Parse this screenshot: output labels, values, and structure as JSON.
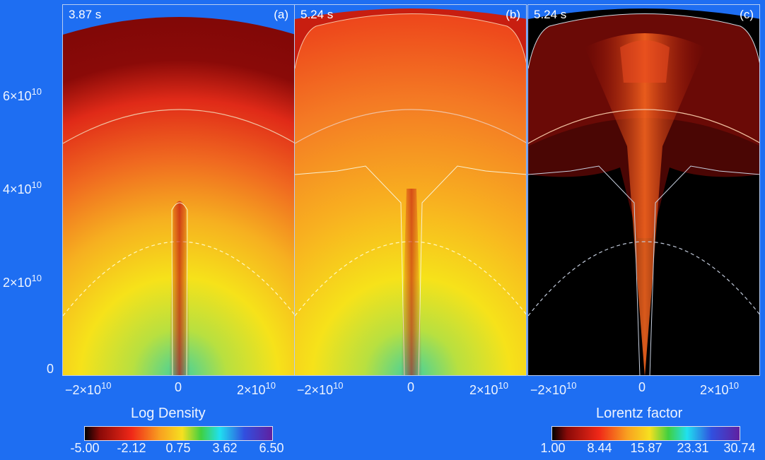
{
  "panels": [
    {
      "time": "3.87 s",
      "label": "(a)",
      "quantity": "Log Density"
    },
    {
      "time": "5.24 s",
      "label": "(b)",
      "quantity": "Log Density"
    },
    {
      "time": "5.24 s",
      "label": "(c)",
      "quantity": "Lorentz factor"
    }
  ],
  "y_axis": {
    "ticks": [
      "6×10",
      "4×10",
      "2×10",
      "0"
    ],
    "exp": "10"
  },
  "x_axis": {
    "ticks": [
      "−2×10",
      "0",
      "2×10"
    ],
    "exp": "10"
  },
  "colorbars": [
    {
      "title": "Log Density",
      "labels": [
        "-5.00",
        "-2.12",
        "0.75",
        "3.62",
        "6.50"
      ]
    },
    {
      "title": "Lorentz factor",
      "labels": [
        "1.00",
        "8.44",
        "15.87",
        "23.31",
        "30.74"
      ]
    }
  ],
  "colors": {
    "background": "#1e6ef2"
  }
}
